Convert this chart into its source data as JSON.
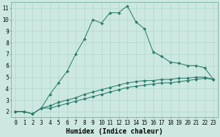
{
  "xlabel": "Humidex (Indice chaleur)",
  "ylabel": "",
  "bg_color": "#cce8e0",
  "line_color": "#2e7d6e",
  "grid_color": "#b0d8cc",
  "xlim": [
    -0.5,
    23.5
  ],
  "ylim": [
    1.5,
    11.5
  ],
  "xticks": [
    0,
    1,
    2,
    3,
    4,
    5,
    6,
    7,
    8,
    9,
    10,
    11,
    12,
    13,
    14,
    15,
    16,
    17,
    18,
    19,
    20,
    21,
    22,
    23
  ],
  "yticks": [
    2,
    3,
    4,
    5,
    6,
    7,
    8,
    9,
    10,
    11
  ],
  "line1_x": [
    0,
    1,
    2,
    3,
    4,
    5,
    6,
    7,
    8,
    9,
    10,
    11,
    12,
    13,
    14,
    15,
    16,
    17,
    18,
    19,
    20,
    21,
    22,
    23
  ],
  "line1_y": [
    2.0,
    2.0,
    1.8,
    2.3,
    3.5,
    4.5,
    5.5,
    7.0,
    8.3,
    10.0,
    9.7,
    10.6,
    10.6,
    11.2,
    9.8,
    9.2,
    7.2,
    6.8,
    6.3,
    6.2,
    6.0,
    6.0,
    5.8,
    4.8
  ],
  "line2_x": [
    0,
    1,
    2,
    3,
    4,
    5,
    6,
    7,
    8,
    9,
    10,
    11,
    12,
    13,
    14,
    15,
    16,
    17,
    18,
    19,
    20,
    21,
    22,
    23
  ],
  "line2_y": [
    2.0,
    2.0,
    1.8,
    2.3,
    2.5,
    2.8,
    3.0,
    3.2,
    3.5,
    3.7,
    3.9,
    4.1,
    4.3,
    4.5,
    4.6,
    4.7,
    4.7,
    4.8,
    4.8,
    4.9,
    4.9,
    5.0,
    5.0,
    4.8
  ],
  "line3_x": [
    0,
    1,
    2,
    3,
    4,
    5,
    6,
    7,
    8,
    9,
    10,
    11,
    12,
    13,
    14,
    15,
    16,
    17,
    18,
    19,
    20,
    21,
    22,
    23
  ],
  "line3_y": [
    2.0,
    2.0,
    1.8,
    2.3,
    2.3,
    2.5,
    2.7,
    2.9,
    3.1,
    3.3,
    3.5,
    3.7,
    3.9,
    4.1,
    4.2,
    4.3,
    4.4,
    4.5,
    4.5,
    4.6,
    4.7,
    4.8,
    4.9,
    4.8
  ],
  "marker": "D",
  "markersize": 2.0,
  "linewidth": 0.8,
  "tick_fontsize": 5.5,
  "xlabel_fontsize": 7.0
}
